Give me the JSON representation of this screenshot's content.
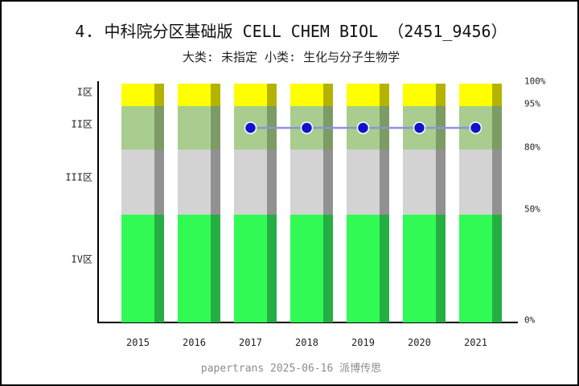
{
  "title": "4. 中科院分区基础版 CELL CHEM BIOL （2451_9456）",
  "subtitle": "大类: 未指定 小类: 生化与分子生物学",
  "footer": "papertrans 2025-06-16 派博传思",
  "chart_data": {
    "type": "bar",
    "stacked": true,
    "title": "4. 中科院分区基础版 CELL CHEM BIOL （2451_9456）",
    "subtitle": "大类: 未指定 小类: 生化与分子生物学",
    "categories": [
      "2015",
      "2016",
      "2017",
      "2018",
      "2019",
      "2020",
      "2021"
    ],
    "zones": [
      {
        "label": "I区",
        "from": 95,
        "to": 100,
        "color": "#ffff00",
        "shadow_color": "#b3b300"
      },
      {
        "label": "II区",
        "from": 80,
        "to": 95,
        "color": "#a8cd8f",
        "shadow_color": "#7d9b64"
      },
      {
        "label": "III区",
        "from": 50,
        "to": 80,
        "color": "#d3d3d3",
        "shadow_color": "#919191"
      },
      {
        "label": "IV区",
        "from": 0,
        "to": 50,
        "color": "#32fa55",
        "shadow_color": "#25ae42"
      }
    ],
    "series": [
      {
        "name": "I区",
        "values": [
          5,
          5,
          5,
          5,
          5,
          5,
          5
        ]
      },
      {
        "name": "II区",
        "values": [
          15,
          15,
          15,
          15,
          15,
          15,
          15
        ]
      },
      {
        "name": "III区",
        "values": [
          30,
          30,
          30,
          30,
          30,
          30,
          30
        ]
      },
      {
        "name": "IV区",
        "values": [
          50,
          50,
          50,
          50,
          50,
          50,
          50
        ]
      }
    ],
    "line_series": {
      "x": [
        "2017",
        "2018",
        "2019",
        "2020",
        "2021"
      ],
      "values": [
        87.5,
        87.5,
        87.5,
        87.5,
        87.5
      ],
      "zone": "II区",
      "dot_color": "#1212cc",
      "dot_ring_color": "#ffffff",
      "line_color": "#8a94d8"
    },
    "y_axis_right_ticks": [
      "100%",
      "95%",
      "80%",
      "50%",
      "0%"
    ],
    "y_axis_left_labels": [
      "I区",
      "II区",
      "III区",
      "IV区"
    ],
    "ylim": [
      0,
      100
    ],
    "grid": false,
    "legend": "none",
    "axis_color": "#000000"
  }
}
